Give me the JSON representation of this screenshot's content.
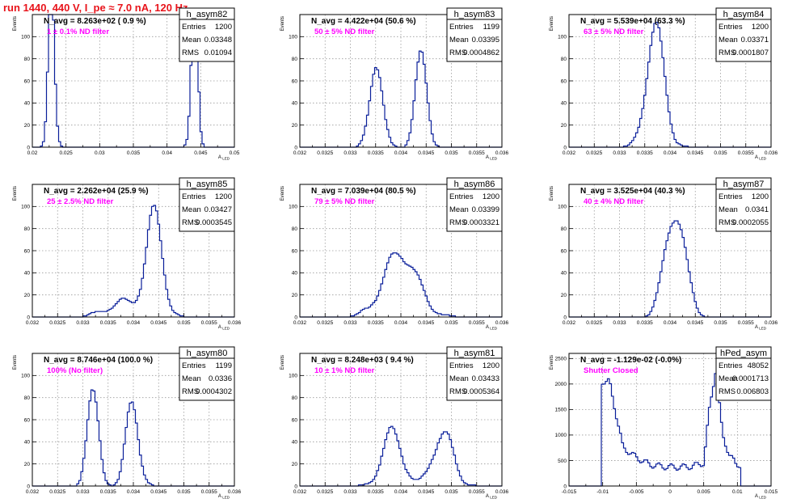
{
  "header": {
    "title": "run 1440,   440 V, I_pe ≈ 7.0 nA, 120 Hz"
  },
  "chart_data": [
    {
      "type": "histogram",
      "name": "h_asym82",
      "n_avg": "N_avg = 8.263e+02 ( 0.9 %)",
      "filter": "1 ± 0.1% ND filter",
      "stats": [
        [
          "Entries",
          "1200"
        ],
        [
          "Mean",
          "0.03348"
        ],
        [
          "RMS",
          "0.01094"
        ]
      ],
      "xlim": [
        0.02,
        0.05
      ],
      "ylim": [
        0,
        120
      ],
      "xlabel": "A_LED",
      "ylabel": "Events",
      "xticks": [
        "0.02",
        "0.025",
        "0.03",
        "0.035",
        "0.04",
        "0.045",
        "0.05"
      ],
      "yticks": [
        "0",
        "20",
        "40",
        "60",
        "80",
        "100"
      ],
      "peaks": [
        [
          0.0228,
          0.00045,
          600
        ],
        [
          0.0441,
          0.00045,
          600
        ]
      ]
    },
    {
      "type": "histogram",
      "name": "h_asym83",
      "n_avg": "N_avg = 4.422e+04 (50.6 %)",
      "filter": "50 ± 5% ND filter",
      "stats": [
        [
          "Entries",
          "1199"
        ],
        [
          "Mean",
          "0.03395"
        ],
        [
          "RMS",
          "0.0004862"
        ]
      ],
      "xlim": [
        0.032,
        0.036
      ],
      "ylim": [
        0,
        120
      ],
      "xlabel": "A_LED",
      "ylabel": "Events",
      "xticks": [
        "0.032",
        "0.0325",
        "0.033",
        "0.0335",
        "0.034",
        "0.0345",
        "0.035",
        "0.0355",
        "0.036"
      ],
      "yticks": [
        "0",
        "20",
        "40",
        "60",
        "80",
        "100"
      ],
      "peaks": [
        [
          0.03351,
          0.00012,
          600
        ],
        [
          0.0344,
          0.00012,
          599
        ]
      ]
    },
    {
      "type": "histogram",
      "name": "h_asym84",
      "n_avg": "N_avg = 5.539e+04 (63.3 %)",
      "filter": "63 ± 5% ND filter",
      "stats": [
        [
          "Entries",
          "1200"
        ],
        [
          "Mean",
          "0.03371"
        ],
        [
          "RMS",
          "0.0001807"
        ]
      ],
      "xlim": [
        0.032,
        0.036
      ],
      "ylim": [
        0,
        120
      ],
      "xlabel": "A_LED",
      "ylabel": "Events",
      "xticks": [
        "0.032",
        "0.0325",
        "0.033",
        "0.0335",
        "0.034",
        "0.0345",
        "0.035",
        "0.0355",
        "0.036"
      ],
      "yticks": [
        "0",
        "20",
        "40",
        "60",
        "80",
        "100"
      ],
      "peaks": [
        [
          0.03371,
          0.00018,
          1200
        ]
      ]
    },
    {
      "type": "histogram",
      "name": "h_asym85",
      "n_avg": "N_avg = 2.262e+04 (25.9 %)",
      "filter": "25 ± 2.5% ND filter",
      "stats": [
        [
          "Entries",
          "1200"
        ],
        [
          "Mean",
          "0.03427"
        ],
        [
          "RMS",
          "0.0003545"
        ]
      ],
      "xlim": [
        0.032,
        0.036
      ],
      "ylim": [
        0,
        120
      ],
      "xlabel": "A_LED",
      "ylabel": "Events",
      "xticks": [
        "0.032",
        "0.0325",
        "0.033",
        "0.0335",
        "0.034",
        "0.0345",
        "0.035",
        "0.0355",
        "0.036"
      ],
      "yticks": [
        "0",
        "20",
        "40",
        "60",
        "80",
        "100"
      ],
      "peaks": [
        [
          0.03442,
          0.00016,
          900
        ],
        [
          0.03385,
          0.00035,
          300
        ]
      ]
    },
    {
      "type": "histogram",
      "name": "h_asym86",
      "n_avg": "N_avg = 7.039e+04 (80.5 %)",
      "filter": "79 ± 5% ND filter",
      "stats": [
        [
          "Entries",
          "1200"
        ],
        [
          "Mean",
          "0.03399"
        ],
        [
          "RMS",
          "0.0003321"
        ]
      ],
      "xlim": [
        0.032,
        0.036
      ],
      "ylim": [
        0,
        120
      ],
      "xlabel": "A_LED",
      "ylabel": "Events",
      "xticks": [
        "0.032",
        "0.0325",
        "0.033",
        "0.0335",
        "0.034",
        "0.0345",
        "0.035",
        "0.0355",
        "0.036"
      ],
      "yticks": [
        "0",
        "20",
        "40",
        "60",
        "80",
        "100"
      ],
      "peaks": [
        [
          0.03399,
          0.00033,
          1200
        ]
      ]
    },
    {
      "type": "histogram",
      "name": "h_asym87",
      "n_avg": "N_avg = 3.525e+04 (40.3 %)",
      "filter": "40 ± 4% ND filter",
      "stats": [
        [
          "Entries",
          "1200"
        ],
        [
          "Mean",
          "0.0341"
        ],
        [
          "RMS",
          "0.0002055"
        ]
      ],
      "xlim": [
        0.032,
        0.036
      ],
      "ylim": [
        0,
        120
      ],
      "xlabel": "A_LED",
      "ylabel": "Events",
      "xticks": [
        "0.032",
        "0.0325",
        "0.033",
        "0.0335",
        "0.034",
        "0.0345",
        "0.035",
        "0.0355",
        "0.036"
      ],
      "yticks": [
        "0",
        "20",
        "40",
        "60",
        "80",
        "100"
      ],
      "peaks": [
        [
          0.0341,
          0.0002,
          1200
        ]
      ]
    },
    {
      "type": "histogram",
      "name": "h_asym80",
      "n_avg": "N_avg = 8.746e+04 (100.0 %)",
      "filter": "100% (No filter)",
      "stats": [
        [
          "Entries",
          "1199"
        ],
        [
          "Mean",
          "0.0336"
        ],
        [
          "RMS",
          "0.0004302"
        ]
      ],
      "xlim": [
        0.032,
        0.036
      ],
      "ylim": [
        0,
        120
      ],
      "xlabel": "A_LED",
      "ylabel": "Events",
      "xticks": [
        "0.032",
        "0.0325",
        "0.033",
        "0.0335",
        "0.034",
        "0.0345",
        "0.035",
        "0.0355",
        "0.036"
      ],
      "yticks": [
        "0",
        "20",
        "40",
        "60",
        "80",
        "100"
      ],
      "peaks": [
        [
          0.0332,
          0.00012,
          600
        ],
        [
          0.03398,
          0.00012,
          599
        ]
      ]
    },
    {
      "type": "histogram",
      "name": "h_asym81",
      "n_avg": "N_avg = 8.248e+03 ( 9.4 %)",
      "filter": "10 ± 1% ND filter",
      "stats": [
        [
          "Entries",
          "1200"
        ],
        [
          "Mean",
          "0.03433"
        ],
        [
          "RMS",
          "0.0005364"
        ]
      ],
      "xlim": [
        0.032,
        0.036
      ],
      "ylim": [
        0,
        120
      ],
      "xlabel": "A_LED",
      "ylabel": "Events",
      "xticks": [
        "0.032",
        "0.0325",
        "0.033",
        "0.0335",
        "0.034",
        "0.0345",
        "0.035",
        "0.0355",
        "0.036"
      ],
      "yticks": [
        "0",
        "20",
        "40",
        "60",
        "80",
        "100"
      ],
      "peaks": [
        [
          0.03383,
          0.0002,
          600
        ],
        [
          0.03483,
          0.0002,
          600
        ]
      ]
    },
    {
      "type": "histogram",
      "name": "hPed_asym",
      "n_avg": "N_avg = -1.129e-02 (-0.0%)",
      "filter": "Shutter Closed",
      "stats": [
        [
          "Entries",
          "48052"
        ],
        [
          "Mean",
          "0.0001713"
        ],
        [
          "RMS",
          "0.006803"
        ]
      ],
      "xlim": [
        -0.015,
        0.015
      ],
      "ylim": [
        0,
        2600
      ],
      "xlabel": "A_LED",
      "ylabel": "Events",
      "xticks": [
        "-0.015",
        "-0.01",
        "-0.005",
        "0",
        "0.005",
        "0.01",
        "0.015"
      ],
      "yticks": [
        "0",
        "500",
        "1000",
        "1500",
        "2000",
        "2500"
      ],
      "ped": [
        [
          -0.009,
          2050
        ],
        [
          -0.007,
          760
        ],
        [
          -0.005,
          560
        ],
        [
          -0.003,
          420
        ],
        [
          -0.001,
          380
        ],
        [
          0.001,
          370
        ],
        [
          0.003,
          380
        ],
        [
          0.005,
          450
        ],
        [
          0.0058,
          1450
        ],
        [
          0.0068,
          2300
        ],
        [
          0.0078,
          1000
        ],
        [
          0.0088,
          620
        ],
        [
          0.0098,
          420
        ]
      ]
    }
  ]
}
